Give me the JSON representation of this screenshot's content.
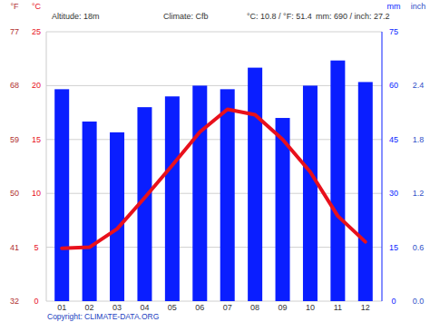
{
  "chart_data": {
    "type": "bar",
    "annotations": [
      "Altitude: 18m",
      "Climate: Cfb",
      "°C: 10.8 / °F: 51.4",
      "mm: 690 / inch: 27.2",
      "Copyright: CLIMATE-DATA.ORG"
    ],
    "categories": [
      "01",
      "02",
      "03",
      "04",
      "05",
      "06",
      "07",
      "08",
      "09",
      "10",
      "11",
      "12"
    ],
    "series": [
      {
        "type": "bar",
        "axis": "y2",
        "color": "#0a1eff",
        "values": [
          59,
          50,
          47,
          54,
          57,
          60,
          59,
          65,
          51,
          60,
          67,
          61
        ]
      },
      {
        "type": "line",
        "color": "#e8101c",
        "values": [
          4.9,
          5.0,
          6.7,
          9.6,
          12.6,
          15.7,
          17.8,
          17.3,
          15.0,
          12.0,
          7.9,
          5.5
        ]
      }
    ],
    "y_label": "°C",
    "ylim": [
      0,
      25
    ],
    "yticks": [
      0,
      5,
      10,
      15,
      20,
      25
    ],
    "y2_label": "mm",
    "y2lim": [
      0,
      75
    ],
    "y2ticks": [
      0,
      15,
      30,
      45,
      60,
      75
    ],
    "fahrenheit_axis": {
      "label": "°F",
      "lim": [
        32,
        77
      ],
      "ticks": [
        32,
        41,
        50,
        59,
        68,
        77
      ]
    },
    "inch_axis": {
      "label": "inch",
      "lim": [
        0,
        3
      ],
      "ticks": [
        {
          "value": 0,
          "label": "0.0"
        },
        0.6,
        1.2,
        1.8,
        2.4
      ]
    },
    "grid": true
  }
}
